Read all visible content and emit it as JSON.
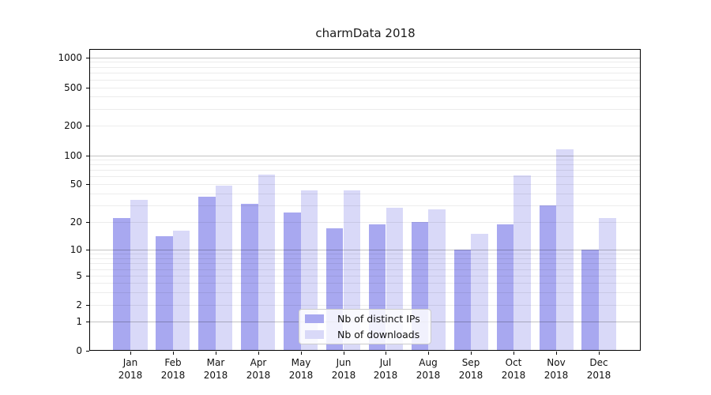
{
  "chart_data": {
    "type": "bar",
    "title": "charmData 2018",
    "year": "2018",
    "categories": [
      "Jan",
      "Feb",
      "Mar",
      "Apr",
      "May",
      "Jun",
      "Jul",
      "Aug",
      "Sep",
      "Oct",
      "Nov",
      "Dec"
    ],
    "series": [
      {
        "name": "Nb of distinct IPs",
        "color": "#a8a8f0",
        "values": [
          22,
          14,
          37,
          31,
          25,
          17,
          19,
          20,
          10,
          19,
          30,
          10
        ]
      },
      {
        "name": "Nb of downloads",
        "color": "#d9d9f8",
        "values": [
          34,
          16,
          48,
          63,
          43,
          43,
          28,
          27,
          15,
          62,
          115,
          22
        ]
      }
    ],
    "y_ticks": [
      0,
      1,
      2,
      5,
      10,
      20,
      50,
      100,
      200,
      500,
      1000
    ],
    "y_major_gridlines": [
      1,
      10,
      100,
      1000
    ],
    "y_scale": "symlog",
    "ylim": [
      0,
      1200
    ],
    "xlabel": "",
    "ylabel": "",
    "grid": true,
    "legend_position": "lower center"
  }
}
